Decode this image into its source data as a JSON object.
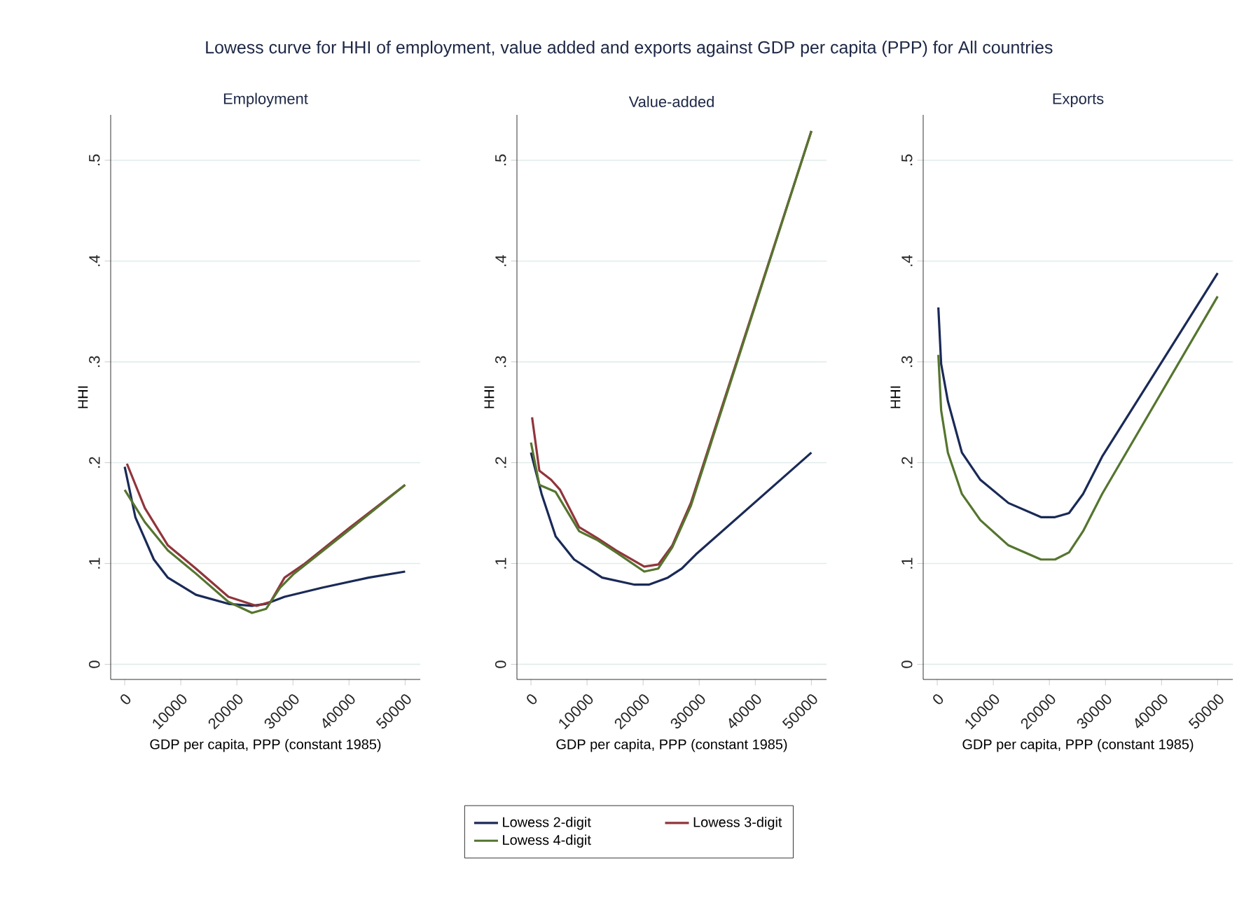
{
  "chart_data": [
    {
      "type": "line",
      "subtitle": "Employment",
      "xlabel": "GDP per capita, PPP (constant 1985)",
      "ylabel": "HHI",
      "annotations": [
        "Lowess curve for HHI of employment, value added and exports against GDP per capita (PPP) for All countries"
      ],
      "xlim": [
        -2500,
        52700
      ],
      "ylim": [
        -0.015,
        0.545
      ],
      "xticks": [
        0,
        10000,
        20000,
        30000,
        40000,
        50000
      ],
      "yticks": [
        {
          "value": 0,
          "label": "0"
        },
        {
          "value": 0.1,
          "label": ".1"
        },
        {
          "value": 0.2,
          "label": ".2"
        },
        {
          "value": 0.3,
          "label": ".3"
        },
        {
          "value": 0.4,
          "label": ".4"
        },
        {
          "value": 0.5,
          "label": ".5"
        }
      ],
      "grid": "y",
      "legend": "bottom",
      "series": [
        {
          "name": "Lowess 2-digit",
          "color": "#1a2a57",
          "x": [
            0,
            1900,
            5200,
            7700,
            12700,
            18500,
            22700,
            25200,
            28500,
            35200,
            43500,
            50000
          ],
          "values": [
            0.196,
            0.146,
            0.104,
            0.086,
            0.069,
            0.06,
            0.058,
            0.06,
            0.067,
            0.076,
            0.086,
            0.092
          ]
        },
        {
          "name": "Lowess 3-digit",
          "color": "#90353b",
          "x": [
            400,
            3600,
            7700,
            12700,
            18500,
            23500,
            26000,
            28500,
            31900,
            40200,
            50000
          ],
          "values": [
            0.199,
            0.155,
            0.118,
            0.095,
            0.067,
            0.058,
            0.062,
            0.086,
            0.099,
            0.136,
            0.178
          ]
        },
        {
          "name": "Lowess 4-digit",
          "color": "#55752f",
          "x": [
            0,
            3600,
            7700,
            12700,
            18500,
            22700,
            25200,
            27700,
            30200,
            40200,
            50000
          ],
          "values": [
            0.173,
            0.141,
            0.113,
            0.09,
            0.062,
            0.051,
            0.055,
            0.076,
            0.09,
            0.134,
            0.178
          ]
        }
      ]
    },
    {
      "type": "line",
      "subtitle": "Value-added",
      "xlabel": "GDP per capita, PPP (constant 1985)",
      "ylabel": "HHI",
      "xlim": [
        -2500,
        52700
      ],
      "ylim": [
        -0.015,
        0.545
      ],
      "xticks": [
        0,
        10000,
        20000,
        30000,
        40000,
        50000
      ],
      "yticks": [
        {
          "value": 0,
          "label": "0"
        },
        {
          "value": 0.1,
          "label": ".1"
        },
        {
          "value": 0.2,
          "label": ".2"
        },
        {
          "value": 0.3,
          "label": ".3"
        },
        {
          "value": 0.4,
          "label": ".4"
        },
        {
          "value": 0.5,
          "label": ".5"
        }
      ],
      "grid": "y",
      "series": [
        {
          "color": "#1a2a57",
          "x": [
            0,
            1900,
            4400,
            7700,
            12700,
            18500,
            21000,
            24400,
            26900,
            29400,
            50000
          ],
          "values": [
            0.21,
            0.169,
            0.127,
            0.104,
            0.086,
            0.079,
            0.079,
            0.086,
            0.095,
            0.109,
            0.21
          ]
        },
        {
          "color": "#90353b",
          "x": [
            200,
            1500,
            3600,
            5200,
            8600,
            11900,
            15200,
            20200,
            22700,
            25200,
            28500,
            50000
          ],
          "values": [
            0.245,
            0.192,
            0.183,
            0.173,
            0.136,
            0.125,
            0.113,
            0.097,
            0.099,
            0.118,
            0.16,
            0.529
          ]
        },
        {
          "color": "#55752f",
          "x": [
            0,
            1500,
            4400,
            8600,
            11900,
            15200,
            20200,
            22700,
            25200,
            28500,
            50000
          ],
          "values": [
            0.22,
            0.178,
            0.171,
            0.132,
            0.123,
            0.111,
            0.092,
            0.095,
            0.116,
            0.157,
            0.529
          ]
        }
      ]
    },
    {
      "type": "line",
      "subtitle": "Exports",
      "xlabel": "GDP per capita, PPP (constant 1985)",
      "ylabel": "HHI",
      "xlim": [
        -2500,
        52700
      ],
      "ylim": [
        -0.015,
        0.545
      ],
      "xticks": [
        0,
        10000,
        20000,
        30000,
        40000,
        50000
      ],
      "yticks": [
        {
          "value": 0,
          "label": "0"
        },
        {
          "value": 0.1,
          "label": ".1"
        },
        {
          "value": 0.2,
          "label": ".2"
        },
        {
          "value": 0.3,
          "label": ".3"
        },
        {
          "value": 0.4,
          "label": ".4"
        },
        {
          "value": 0.5,
          "label": ".5"
        }
      ],
      "grid": "y",
      "series": [
        {
          "color": "#1a2a57",
          "x": [
            200,
            700,
            1900,
            4400,
            7700,
            12700,
            18500,
            21000,
            23500,
            26000,
            29400,
            50000
          ],
          "values": [
            0.354,
            0.298,
            0.261,
            0.21,
            0.183,
            0.16,
            0.146,
            0.146,
            0.15,
            0.169,
            0.206,
            0.388
          ]
        },
        {
          "color": "#55752f",
          "x": [
            200,
            700,
            1900,
            4400,
            7700,
            12700,
            18500,
            21000,
            23500,
            26000,
            29400,
            50000
          ],
          "values": [
            0.307,
            0.252,
            0.21,
            0.169,
            0.143,
            0.118,
            0.104,
            0.104,
            0.111,
            0.132,
            0.169,
            0.365
          ]
        }
      ]
    }
  ]
}
